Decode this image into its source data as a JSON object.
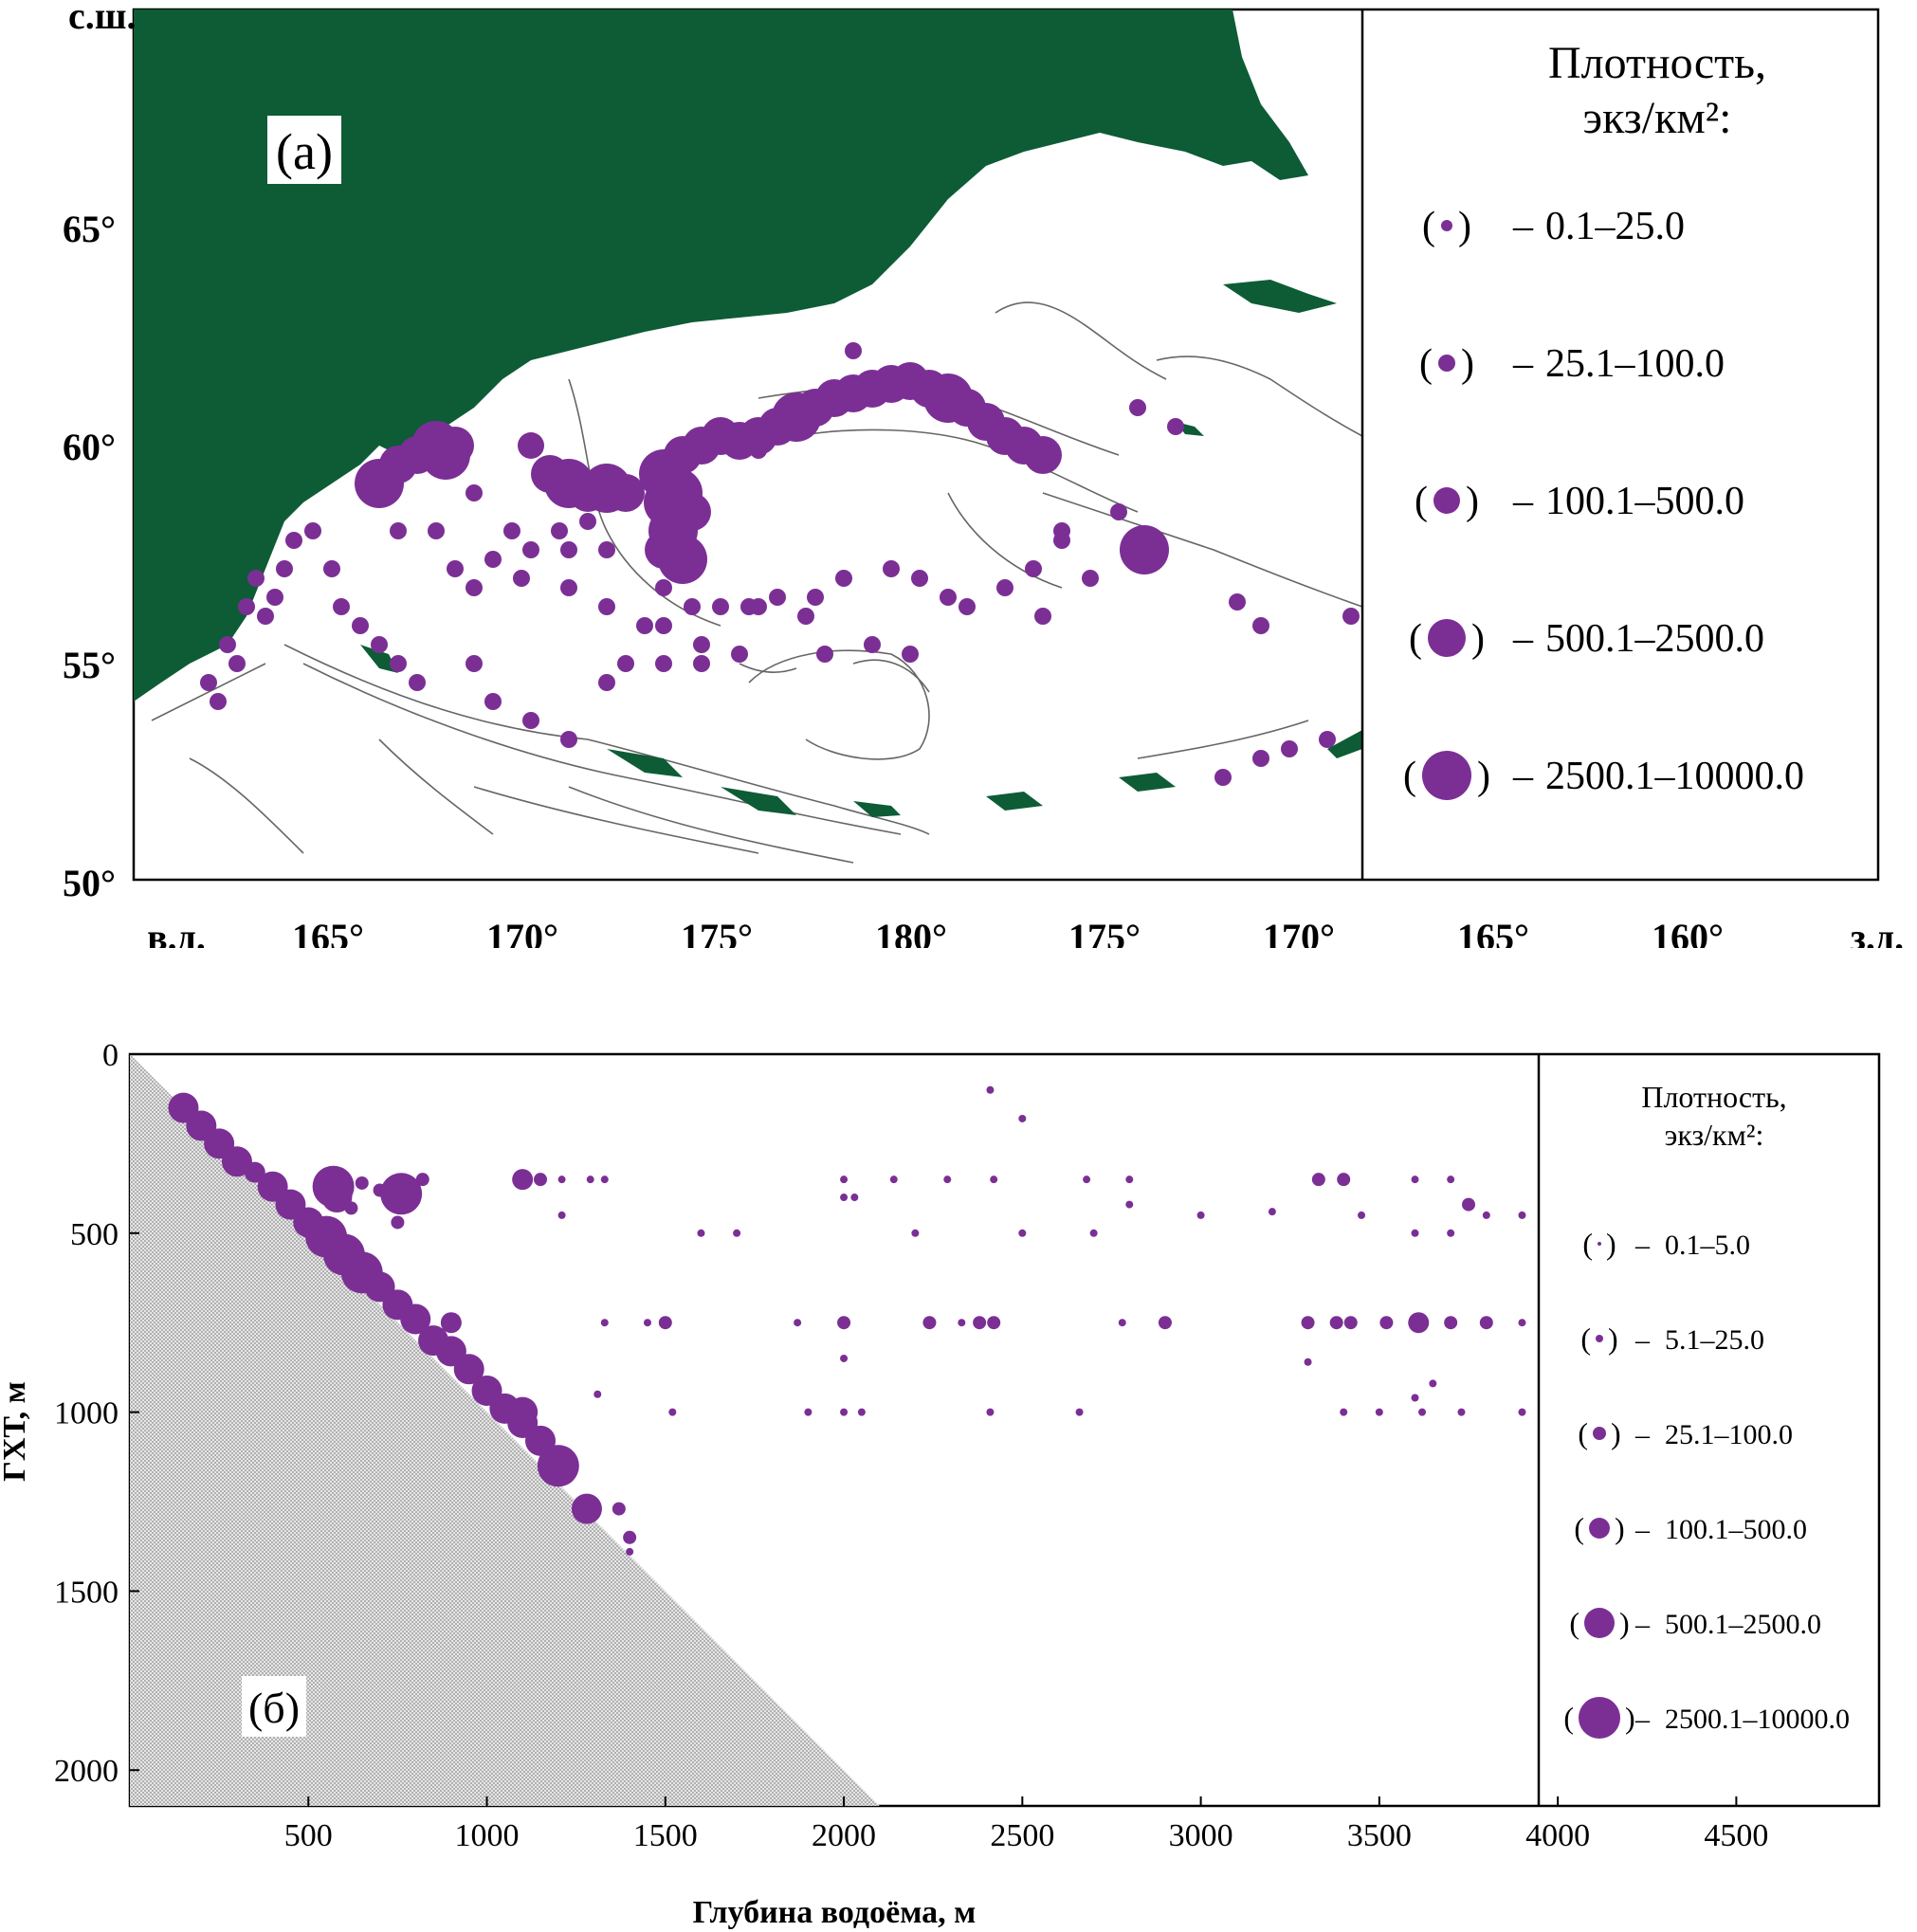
{
  "panel_a": {
    "tag": "(а)",
    "lat_unit": "с.ш.",
    "lon_left_unit": "в.д.",
    "lon_right_unit": "з.д.",
    "lat_ticks": [
      "65°",
      "60°",
      "55°",
      "50°"
    ],
    "lon_ticks": [
      "165°",
      "170°",
      "175°",
      "180°",
      "175°",
      "170°",
      "165°",
      "160°"
    ],
    "legend_title_1": "Плотность,",
    "legend_title_2": "экз/км²:",
    "legend": [
      "0.1–25.0",
      "25.1–100.0",
      "100.1–500.0",
      "500.1–2500.0",
      "2500.1–10000.0"
    ],
    "colors": {
      "land": "#0d5c36",
      "point": "#7b2f95",
      "contour": "#666666"
    }
  },
  "chart_data": {
    "type": "scatter",
    "tag": "(б)",
    "xlabel": "Глубина водоёма, м",
    "ylabel": "ГХТ, м",
    "xlim": [
      0,
      4900
    ],
    "ylim": [
      2100,
      0
    ],
    "x_ticks": [
      "500",
      "1000",
      "1500",
      "2000",
      "2500",
      "3000",
      "3500",
      "4000",
      "4500"
    ],
    "y_ticks": [
      "0",
      "500",
      "1000",
      "1500",
      "2000"
    ],
    "legend_title_1": "Плотность,",
    "legend_title_2": "экз/км²:",
    "legend": [
      "0.1–5.0",
      "5.1–25.0",
      "25.1–100.0",
      "100.1–500.0",
      "500.1–2500.0",
      "2500.1–10000.0"
    ],
    "series": [
      {
        "points": [
          [
            150,
            150,
            4
          ],
          [
            200,
            200,
            4
          ],
          [
            250,
            250,
            4
          ],
          [
            300,
            300,
            4
          ],
          [
            350,
            330,
            3
          ],
          [
            400,
            370,
            4
          ],
          [
            450,
            420,
            4
          ],
          [
            500,
            470,
            4
          ],
          [
            550,
            510,
            5
          ],
          [
            600,
            560,
            5
          ],
          [
            650,
            610,
            5
          ],
          [
            700,
            650,
            4
          ],
          [
            750,
            700,
            4
          ],
          [
            800,
            740,
            4
          ],
          [
            850,
            800,
            4
          ],
          [
            900,
            830,
            4
          ],
          [
            950,
            880,
            4
          ],
          [
            1000,
            940,
            4
          ],
          [
            1050,
            990,
            4
          ],
          [
            1100,
            1030,
            4
          ],
          [
            1150,
            1080,
            4
          ],
          [
            1200,
            1150,
            5
          ],
          [
            1100,
            1000,
            4
          ],
          [
            1280,
            1270,
            4
          ],
          [
            1400,
            1350,
            2
          ],
          [
            1370,
            1270,
            2
          ],
          [
            1400,
            1390,
            1
          ],
          [
            570,
            370,
            5
          ],
          [
            580,
            400,
            4
          ],
          [
            760,
            390,
            5
          ],
          [
            620,
            430,
            2
          ],
          [
            650,
            360,
            2
          ],
          [
            700,
            380,
            2
          ],
          [
            750,
            470,
            2
          ],
          [
            820,
            350,
            2
          ],
          [
            900,
            750,
            3
          ],
          [
            1100,
            350,
            3
          ],
          [
            1150,
            350,
            2
          ],
          [
            1210,
            350,
            1
          ],
          [
            1290,
            350,
            1
          ],
          [
            1330,
            350,
            1
          ],
          [
            1210,
            450,
            1
          ],
          [
            1450,
            750,
            1
          ],
          [
            1500,
            750,
            2
          ],
          [
            1330,
            750,
            1
          ],
          [
            1310,
            950,
            1
          ],
          [
            1520,
            1000,
            1
          ],
          [
            2410,
            100,
            1
          ],
          [
            2500,
            180,
            1
          ],
          [
            2000,
            350,
            1
          ],
          [
            2140,
            350,
            1
          ],
          [
            2290,
            350,
            1
          ],
          [
            2420,
            350,
            1
          ],
          [
            2680,
            350,
            1
          ],
          [
            2800,
            350,
            1
          ],
          [
            2800,
            420,
            1
          ],
          [
            2000,
            400,
            1
          ],
          [
            2030,
            400,
            1
          ],
          [
            1600,
            500,
            1
          ],
          [
            1700,
            500,
            1
          ],
          [
            2200,
            500,
            1
          ],
          [
            2500,
            500,
            1
          ],
          [
            2700,
            500,
            1
          ],
          [
            3000,
            450,
            1
          ],
          [
            1870,
            750,
            1
          ],
          [
            2000,
            750,
            2
          ],
          [
            2240,
            750,
            2
          ],
          [
            2330,
            750,
            1
          ],
          [
            2380,
            750,
            2
          ],
          [
            2420,
            750,
            2
          ],
          [
            2780,
            750,
            1
          ],
          [
            2900,
            750,
            2
          ],
          [
            3300,
            750,
            2
          ],
          [
            3380,
            750,
            2
          ],
          [
            3420,
            750,
            2
          ],
          [
            3520,
            750,
            2
          ],
          [
            3610,
            750,
            3
          ],
          [
            3700,
            750,
            2
          ],
          [
            3800,
            750,
            2
          ],
          [
            3900,
            750,
            1
          ],
          [
            2000,
            850,
            1
          ],
          [
            2000,
            1000,
            1
          ],
          [
            1900,
            1000,
            1
          ],
          [
            2050,
            1000,
            1
          ],
          [
            2410,
            1000,
            1
          ],
          [
            2660,
            1000,
            1
          ],
          [
            3400,
            1000,
            1
          ],
          [
            3500,
            1000,
            1
          ],
          [
            3620,
            1000,
            1
          ],
          [
            3730,
            1000,
            1
          ],
          [
            3900,
            1000,
            1
          ],
          [
            3330,
            350,
            2
          ],
          [
            3400,
            350,
            2
          ],
          [
            3600,
            350,
            1
          ],
          [
            3700,
            350,
            1
          ],
          [
            3750,
            420,
            2
          ],
          [
            3800,
            450,
            1
          ],
          [
            3900,
            450,
            1
          ],
          [
            3600,
            500,
            1
          ],
          [
            3700,
            500,
            1
          ],
          [
            3450,
            450,
            1
          ],
          [
            3200,
            440,
            1
          ],
          [
            3600,
            960,
            1
          ],
          [
            3650,
            920,
            1
          ],
          [
            3300,
            860,
            1
          ]
        ]
      }
    ]
  }
}
